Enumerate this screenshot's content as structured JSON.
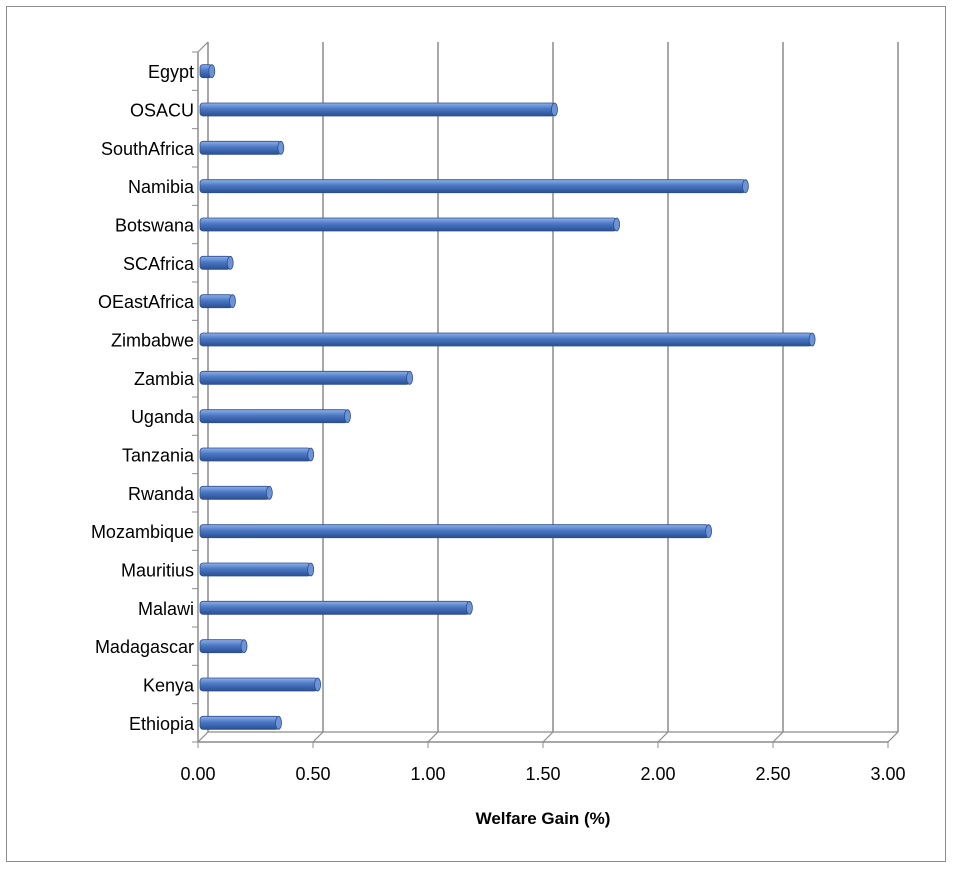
{
  "chart_data": {
    "type": "bar",
    "orientation": "horizontal",
    "categories": [
      "Ethiopia",
      "Kenya",
      "Madagascar",
      "Malawi",
      "Mauritius",
      "Mozambique",
      "Rwanda",
      "Tanzania",
      "Uganda",
      "Zambia",
      "Zimbabwe",
      "OEastAfrica",
      "SCAfrica",
      "Botswana",
      "Namibia",
      "SouthAfrica",
      "OSACU",
      "Egypt"
    ],
    "values": [
      0.35,
      0.52,
      0.2,
      1.18,
      0.49,
      2.22,
      0.31,
      0.49,
      0.65,
      0.92,
      2.67,
      0.15,
      0.14,
      1.82,
      2.38,
      0.36,
      1.55,
      0.06
    ],
    "title": "",
    "xlabel": "Welfare Gain  (%)",
    "ylabel": "",
    "xlim": [
      0,
      3
    ],
    "x_ticks": [
      "0.00",
      "0.50",
      "1.00",
      "1.50",
      "2.00",
      "2.50",
      "3.00"
    ],
    "grid": true,
    "bar_color": "#4a78c4",
    "legend": "none"
  }
}
